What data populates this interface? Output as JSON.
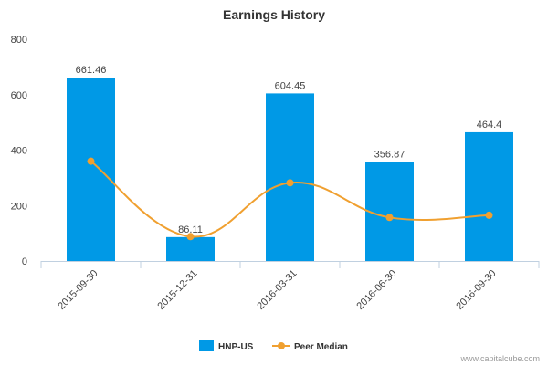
{
  "chart_data": {
    "type": "bar",
    "title": "Earnings History",
    "categories": [
      "2015-09-30",
      "2015-12-31",
      "2016-03-31",
      "2016-06-30",
      "2016-09-30"
    ],
    "series": [
      {
        "name": "HNP-US",
        "type": "bar",
        "color": "#0099e6",
        "values": [
          661.46,
          86.11,
          604.45,
          356.87,
          464.4
        ],
        "data_labels": [
          "661.46",
          "86.11",
          "604.45",
          "356.87",
          "464.4"
        ]
      },
      {
        "name": "Peer Median",
        "type": "line",
        "color": "#f0a030",
        "values": [
          360,
          88,
          282,
          157,
          165
        ]
      }
    ],
    "ylim": [
      0,
      800
    ],
    "yticks": [
      0,
      200,
      400,
      600,
      800
    ],
    "xlabel": "",
    "ylabel": "",
    "legend_position": "bottom-center"
  },
  "credit": "www.capitalcube.com"
}
